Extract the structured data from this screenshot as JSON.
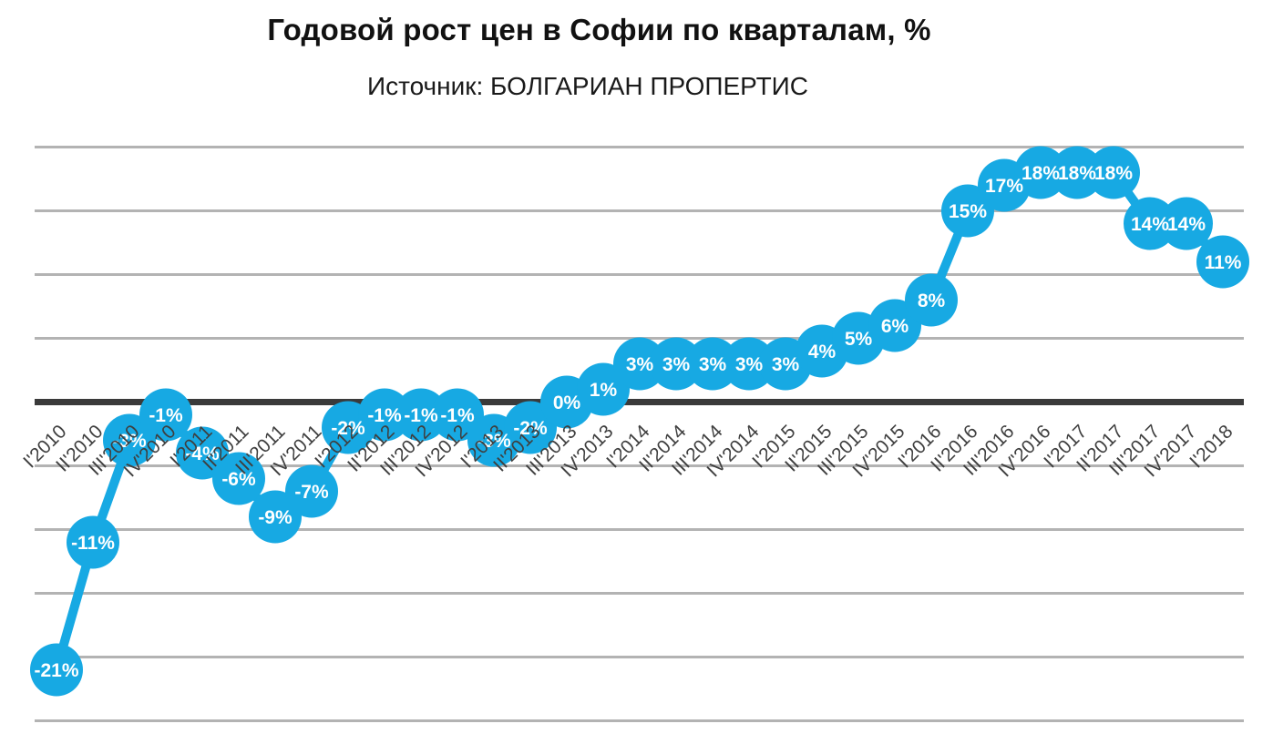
{
  "header": {
    "title": "Годовой рост цен в Софии по кварталам, %",
    "subtitle": "Источник: БОЛГАРИАН ПРОПЕРТИС"
  },
  "chart_data": {
    "type": "line",
    "title": "Годовой рост цен в Софии по кварталам, %",
    "subtitle": "Источник: БОЛГАРИАН ПРОПЕРТИС",
    "xlabel": "",
    "ylabel": "",
    "categories": [
      "I'2010",
      "II'2010",
      "III'2010",
      "IV'2010",
      "I'2011",
      "II'2011",
      "III'2011",
      "IV'2011",
      "I'2012",
      "II'2012",
      "III'2012",
      "IV'2012",
      "I'2013",
      "II'2013",
      "III'2013",
      "IV'2013",
      "I'2014",
      "II'2014",
      "III'2014",
      "IV'2014",
      "I'2015",
      "II'2015",
      "III'2015",
      "IV'2015",
      "I'2016",
      "II'2016",
      "III'2016",
      "IV'2016",
      "I'2017",
      "II'2017",
      "III'2017",
      "IV'2017",
      "I'2018"
    ],
    "values": [
      -21,
      -11,
      -3,
      -1,
      -4,
      -6,
      -9,
      -7,
      -2,
      -1,
      -1,
      -1,
      -3,
      -2,
      0,
      1,
      3,
      3,
      3,
      3,
      3,
      4,
      5,
      6,
      8,
      15,
      17,
      18,
      18,
      18,
      14,
      14,
      11
    ],
    "point_labels": [
      "-21%",
      "-11%",
      "-3%",
      "-1%",
      "-4%",
      "-6%",
      "-9%",
      "-7%",
      "-2%",
      "-1%",
      "-1%",
      "-1%",
      "-3%",
      "-2%",
      "0%",
      "1%",
      "3%",
      "3%",
      "3%",
      "3%",
      "3%",
      "4%",
      "5%",
      "6%",
      "8%",
      "15%",
      "17%",
      "18%",
      "18%",
      "18%",
      "14%",
      "14%",
      "11%"
    ],
    "ylim": [
      -25,
      20
    ],
    "grid_step": 5,
    "grid": true,
    "legend": false,
    "y_tick_labels_visible": false,
    "x_labels_rotation_deg": -45,
    "colors": {
      "series": "#17A9E3",
      "value_label": "#FFFFFF",
      "axis_label": "#3F3F3F",
      "gridline": "#B3B3B3",
      "zero_line": "#3A3A3A",
      "title": "#111111"
    }
  }
}
